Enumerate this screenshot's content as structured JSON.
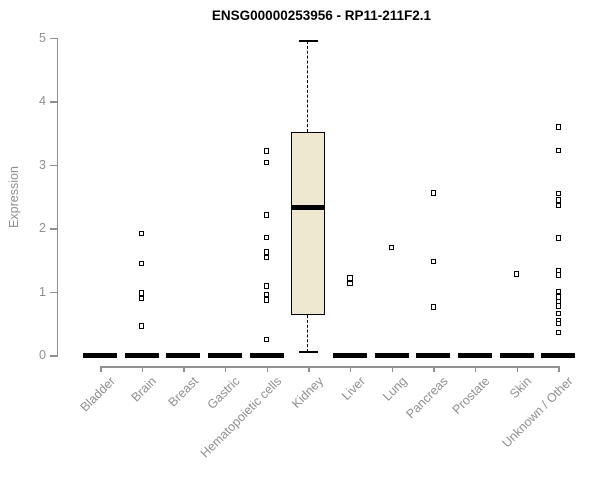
{
  "chart_data": {
    "type": "boxplot",
    "title": "ENSG00000253956 - RP11-211F2.1",
    "ylabel": "Expression",
    "xlabel": "",
    "ylim": [
      0,
      5
    ],
    "yticks": [
      0,
      1,
      2,
      3,
      4,
      5
    ],
    "grid": false,
    "legend": false,
    "colors": {
      "box_fill": "#ede8cf",
      "box_border": "#000000",
      "axis": "#909090",
      "axis_text": "#8f8f8f",
      "title_text": "#000000",
      "outlier": "#000000"
    },
    "categories": [
      "Bladder",
      "Brain",
      "Breast",
      "Gastric",
      "Hematopoietic cells",
      "Kidney",
      "Liver",
      "Lung",
      "Pancreas",
      "Prostate",
      "Skin",
      "Unknown / Other"
    ],
    "boxes": [
      {
        "category": "Bladder",
        "median": 0,
        "q1": 0,
        "q3": 0,
        "whisker_low": 0,
        "whisker_high": 0,
        "collapsed": true,
        "outliers": []
      },
      {
        "category": "Brain",
        "median": 0,
        "q1": 0,
        "q3": 0,
        "whisker_low": 0,
        "whisker_high": 0,
        "collapsed": true,
        "outliers": [
          1.92,
          1.45,
          0.98,
          0.9,
          0.46
        ]
      },
      {
        "category": "Breast",
        "median": 0,
        "q1": 0,
        "q3": 0,
        "whisker_low": 0,
        "whisker_high": 0,
        "collapsed": true,
        "outliers": []
      },
      {
        "category": "Gastric",
        "median": 0,
        "q1": 0,
        "q3": 0,
        "whisker_low": 0,
        "whisker_high": 0,
        "collapsed": true,
        "outliers": []
      },
      {
        "category": "Hematopoietic cells",
        "median": 0,
        "q1": 0,
        "q3": 0,
        "whisker_low": 0,
        "whisker_high": 0,
        "collapsed": true,
        "outliers": [
          3.22,
          3.04,
          2.21,
          1.86,
          1.63,
          1.54,
          1.09,
          0.96,
          0.87,
          0.25
        ]
      },
      {
        "category": "Kidney",
        "median": 2.33,
        "q1": 0.64,
        "q3": 3.52,
        "whisker_low": 0.05,
        "whisker_high": 4.95,
        "collapsed": false,
        "outliers": []
      },
      {
        "category": "Liver",
        "median": 0,
        "q1": 0,
        "q3": 0,
        "whisker_low": 0,
        "whisker_high": 0,
        "collapsed": true,
        "outliers": [
          1.22,
          1.13
        ]
      },
      {
        "category": "Lung",
        "median": 0,
        "q1": 0,
        "q3": 0,
        "whisker_low": 0,
        "whisker_high": 0,
        "collapsed": true,
        "outliers": [
          1.7
        ]
      },
      {
        "category": "Pancreas",
        "median": 0,
        "q1": 0,
        "q3": 0,
        "whisker_low": 0,
        "whisker_high": 0,
        "collapsed": true,
        "outliers": [
          2.56,
          1.48,
          0.76
        ]
      },
      {
        "category": "Prostate",
        "median": 0,
        "q1": 0,
        "q3": 0,
        "whisker_low": 0,
        "whisker_high": 0,
        "collapsed": true,
        "outliers": []
      },
      {
        "category": "Skin",
        "median": 0,
        "q1": 0,
        "q3": 0,
        "whisker_low": 0,
        "whisker_high": 0,
        "collapsed": true,
        "outliers": [
          1.28
        ]
      },
      {
        "category": "Unknown / Other",
        "median": 0,
        "q1": 0,
        "q3": 0,
        "whisker_low": 0,
        "whisker_high": 0,
        "collapsed": true,
        "outliers": [
          3.6,
          3.23,
          2.55,
          2.45,
          2.36,
          1.85,
          1.34,
          1.27,
          1.01,
          0.92,
          0.84,
          0.78,
          0.66,
          0.55,
          0.5,
          0.36
        ]
      }
    ]
  }
}
